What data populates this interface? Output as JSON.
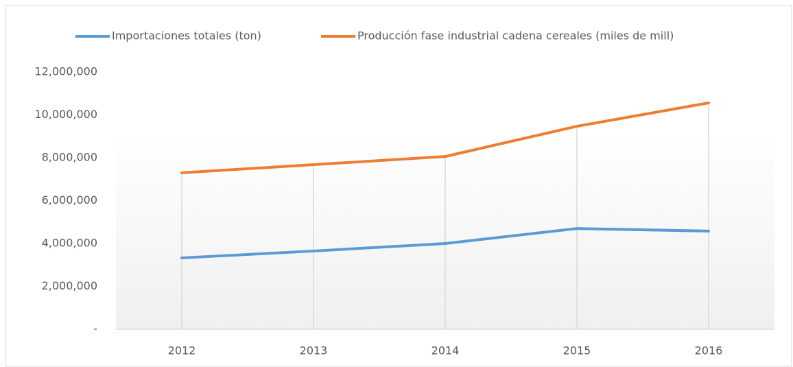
{
  "chart_data": {
    "type": "line",
    "categories": [
      "2012",
      "2013",
      "2014",
      "2015",
      "2016"
    ],
    "series": [
      {
        "name": "Importaciones totales (ton)",
        "color": "#5b9bd5",
        "values": [
          3330000,
          3650000,
          4000000,
          4700000,
          4580000
        ]
      },
      {
        "name": "Producción fase industrial cadena cereales (miles de mill)",
        "color": "#ed7d31",
        "values": [
          7300000,
          7680000,
          8060000,
          9470000,
          10560000
        ]
      }
    ],
    "ylim": [
      0,
      12000000
    ],
    "yticks": [
      {
        "value": 0,
        "label": "-"
      },
      {
        "value": 2000000,
        "label": "2,000,000"
      },
      {
        "value": 4000000,
        "label": "4,000,000"
      },
      {
        "value": 6000000,
        "label": "6,000,000"
      },
      {
        "value": 8000000,
        "label": "8,000,000"
      },
      {
        "value": 10000000,
        "label": "10,000,000"
      },
      {
        "value": 12000000,
        "label": "12,000,000"
      }
    ],
    "legend": "top",
    "drop_lines": true
  }
}
